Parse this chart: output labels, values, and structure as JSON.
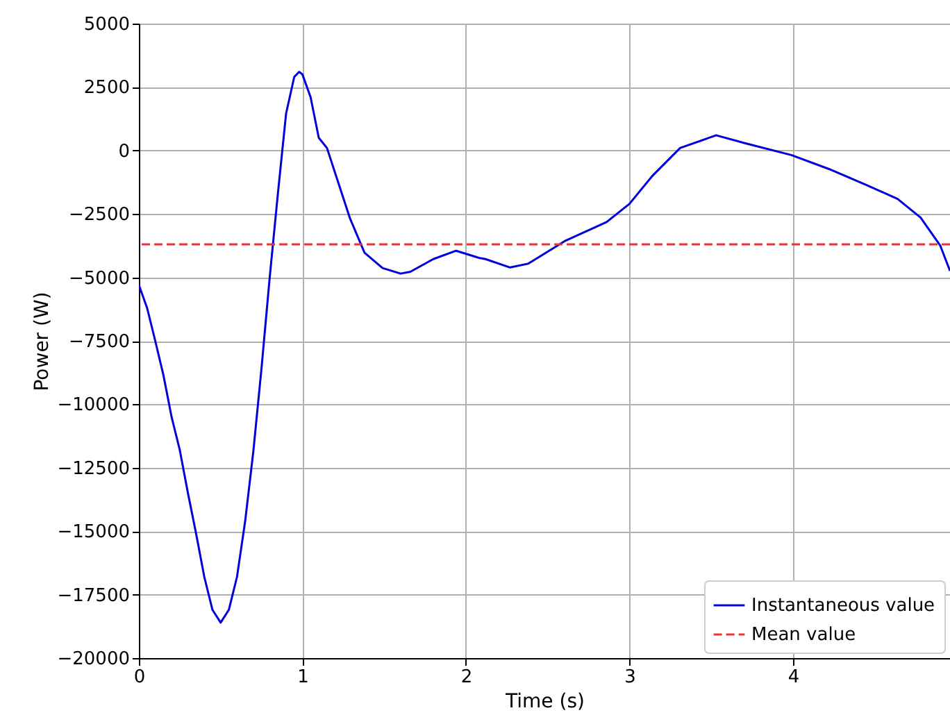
{
  "chart_data": {
    "type": "line",
    "xlabel": "Time (s)",
    "ylabel": "Power (W)",
    "xlim": [
      0,
      4.96
    ],
    "xticks": [
      0,
      1,
      2,
      3,
      4
    ],
    "ylim": [
      -20000,
      5000
    ],
    "yticks": [
      -20000,
      -17500,
      -15000,
      -12500,
      -10000,
      -7500,
      -5000,
      -2500,
      0,
      2500,
      5000
    ],
    "grid": true,
    "legend": "bottom right",
    "x": [
      0,
      0.05,
      0.1,
      0.15,
      0.2,
      0.25,
      0.3,
      0.35,
      0.4,
      0.45,
      0.5,
      0.55,
      0.6,
      0.65,
      0.7,
      0.75,
      0.8,
      0.85,
      0.9,
      0.95,
      0.98,
      1.0,
      1.05,
      1.1,
      1.15,
      1.29,
      1.38,
      1.49,
      1.6,
      1.66,
      1.8,
      1.94,
      2.08,
      2.12,
      2.27,
      2.38,
      2.61,
      2.86,
      3.0,
      3.14,
      3.31,
      3.53,
      3.71,
      3.99,
      4.22,
      4.45,
      4.64,
      4.78,
      4.9,
      4.96
    ],
    "series": [
      {
        "name": "Instantaneous value",
        "color": "#0000dd",
        "values": [
          -5300,
          -6200,
          -7500,
          -8850,
          -10500,
          -11800,
          -13500,
          -15100,
          -16800,
          -18100,
          -18600,
          -18100,
          -16800,
          -14600,
          -11850,
          -8570,
          -5000,
          -1700,
          1450,
          2900,
          3100,
          3000,
          2100,
          500,
          100,
          -2660,
          -4030,
          -4630,
          -4850,
          -4780,
          -4280,
          -3950,
          -4230,
          -4280,
          -4610,
          -4460,
          -3550,
          -2820,
          -2100,
          -1000,
          100,
          600,
          280,
          -180,
          -730,
          -1360,
          -1910,
          -2640,
          -3740,
          -4740
        ]
      }
    ],
    "ref_lines": [
      {
        "axis": "y",
        "value": -3700,
        "label": "Mean value",
        "color": "#ee3333",
        "line_style": "dashed"
      }
    ]
  }
}
